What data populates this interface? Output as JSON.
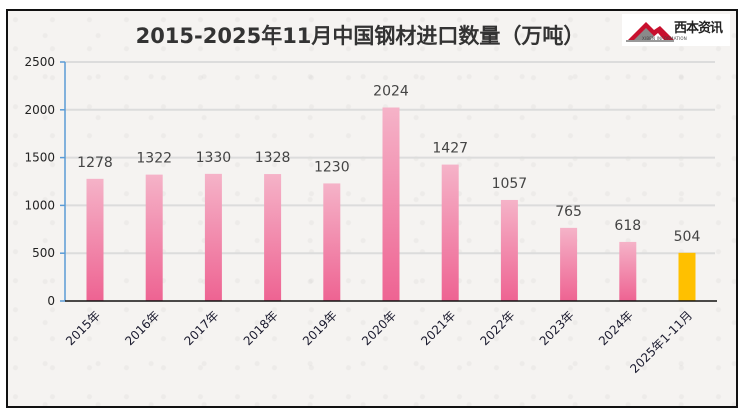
{
  "chart_data": {
    "type": "bar",
    "title": "2015-2025年11月中国钢材进口数量（万吨）",
    "xlabel": "",
    "ylabel": "",
    "categories": [
      "2015年",
      "2016年",
      "2017年",
      "2018年",
      "2019年",
      "2020年",
      "2021年",
      "2022年",
      "2023年",
      "2024年",
      "2025年1-11月"
    ],
    "values": [
      1278,
      1322,
      1330,
      1328,
      1230,
      2024,
      1427,
      1057,
      765,
      618,
      504
    ],
    "ylim": [
      0,
      2500
    ],
    "yticks": [
      0,
      500,
      1000,
      1500,
      2000,
      2500
    ],
    "grid": true,
    "legend": "none",
    "colors": {
      "default_bar_top": "#f5b3c8",
      "default_bar_bottom": "#ee6392",
      "highlight_bar": "#ffc000",
      "y_axis": "#5b9bd5",
      "x_axis": "#111111",
      "gridline": "#dcdcdc"
    },
    "highlight_index": 10
  },
  "logo": {
    "text": "西本资讯",
    "subtext": "XIBEN INFORMATION"
  }
}
